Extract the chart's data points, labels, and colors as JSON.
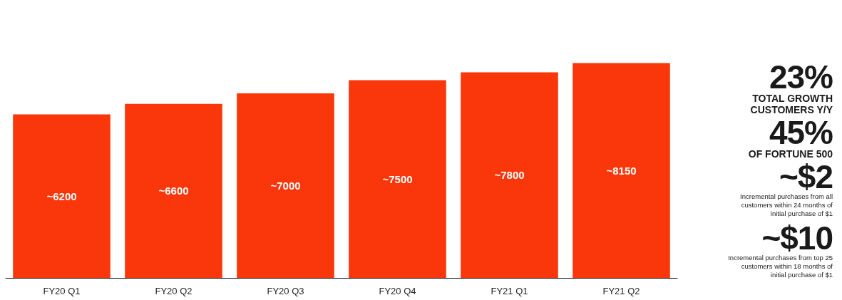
{
  "chart_data": {
    "type": "bar",
    "categories": [
      "FY20 Q1",
      "FY20 Q2",
      "FY20 Q3",
      "FY20 Q4",
      "FY21 Q1",
      "FY21 Q2"
    ],
    "values": [
      6200,
      6600,
      7000,
      7500,
      7800,
      8150
    ],
    "value_labels": [
      "~6200",
      "~6600",
      "~7000",
      "~7500",
      "~7800",
      "~8150"
    ],
    "color": "#fa370a",
    "tick_labels": "x",
    "grid": false,
    "annotations": [
      "23%",
      "TOTAL GROWTH CUSTOMERS Y/Y",
      "45%",
      "OF FORTUNE 500",
      "~$2",
      "Incremental purchases from all customers within 24 months of initial purchase of $1",
      "~$10",
      "Incremental purchases from top 25 customers within 18 months of initial purchase of $1"
    ]
  }
}
